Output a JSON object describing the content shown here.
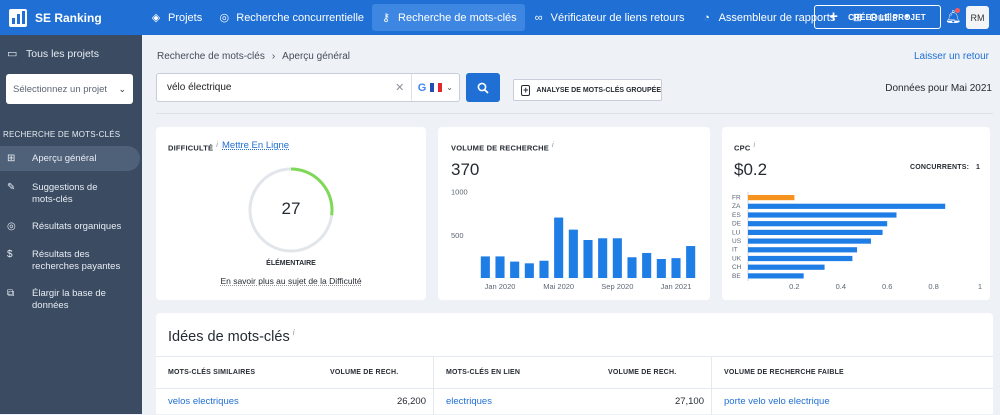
{
  "app": {
    "name": "SE Ranking"
  },
  "nav": [
    {
      "label": "Projets",
      "icon": "layers-icon"
    },
    {
      "label": "Recherche concurrentielle",
      "icon": "target-icon"
    },
    {
      "label": "Recherche de mots-clés",
      "icon": "key-icon"
    },
    {
      "label": "Vérificateur de liens retours",
      "icon": "link-icon"
    },
    {
      "label": "Assembleur de rapports",
      "icon": "pie-icon"
    },
    {
      "label": "Outils",
      "icon": "grid-icon"
    }
  ],
  "header": {
    "create_label": "CRÉER LE PROJET",
    "avatar": "RM"
  },
  "sidebar": {
    "projects_label": "Tous les projets",
    "select_placeholder": "Sélectionnez un projet",
    "section_title": "RECHERCHE DE MOTS-CLÉS",
    "items": [
      {
        "label": "Aperçu général",
        "icon": "grid-icon"
      },
      {
        "label": "Suggestions de mots-clés",
        "icon": "pencil-icon"
      },
      {
        "label": "Résultats organiques",
        "icon": "target-icon"
      },
      {
        "label": "Résultats des recherches payantes",
        "icon": "dollar-icon"
      },
      {
        "label": "Élargir la base de données",
        "icon": "external-icon"
      }
    ]
  },
  "breadcrumb": {
    "root": "Recherche de mots-clés",
    "current": "Aperçu général"
  },
  "feedback_link": "Laisser un retour",
  "search": {
    "value": "vélo électrique"
  },
  "bulk_label": "ANALYSE DE MOTS-CLÉS GROUPÉE",
  "data_date": "Données pour Mai 2021",
  "difficulty": {
    "title": "DIFFICULTÉ",
    "link": "Mettre En Ligne",
    "value": "27",
    "score": 27,
    "level": "ÉLÉMENTAIRE",
    "learn_more": "En savoir plus au sujet de la Difficulté",
    "color": "#7ed957"
  },
  "volume": {
    "title": "VOLUME DE RECHERCHE",
    "value": "370",
    "chart_data": {
      "type": "bar",
      "y_ticks": [
        "1000",
        "500"
      ],
      "x_labels": [
        "Jan 2020",
        "Mai 2020",
        "Sep 2020",
        "Jan 2021"
      ],
      "values": [
        250,
        250,
        190,
        170,
        200,
        700,
        560,
        440,
        460,
        460,
        240,
        290,
        220,
        230,
        370
      ],
      "ylim": [
        0,
        1100
      ],
      "color": "#1f7de6"
    }
  },
  "cpc": {
    "title": "CPC",
    "value": "$0.2",
    "competitors_label": "CONCURRENTS:",
    "competitors_value": "1",
    "chart_data": {
      "type": "bar",
      "orientation": "horizontal",
      "categories": [
        "FR",
        "ZA",
        "ES",
        "DE",
        "LU",
        "US",
        "IT",
        "UK",
        "CH",
        "BE"
      ],
      "values": [
        0.2,
        0.85,
        0.64,
        0.6,
        0.58,
        0.53,
        0.47,
        0.45,
        0.33,
        0.24
      ],
      "x_ticks": [
        "0.2",
        "0.4",
        "0.6",
        "0.8",
        "1"
      ],
      "xlim": [
        0,
        1
      ],
      "highlight_color": "#f5931e",
      "color": "#1f7de6"
    }
  },
  "ideas": {
    "title": "Idées de mots-clés",
    "columns": [
      {
        "header": "MOTS-CLÉS SIMILAIRES",
        "vol_header": "VOLUME DE RECH.",
        "keyword": "velos electriques",
        "volume": "26,200"
      },
      {
        "header": "MOTS-CLÉS EN LIEN",
        "vol_header": "VOLUME DE RECH.",
        "keyword": "electriques",
        "volume": "27,100"
      },
      {
        "header": "VOLUME DE RECHERCHE FAIBLE",
        "keyword": "porte velo velo electrique"
      }
    ]
  }
}
